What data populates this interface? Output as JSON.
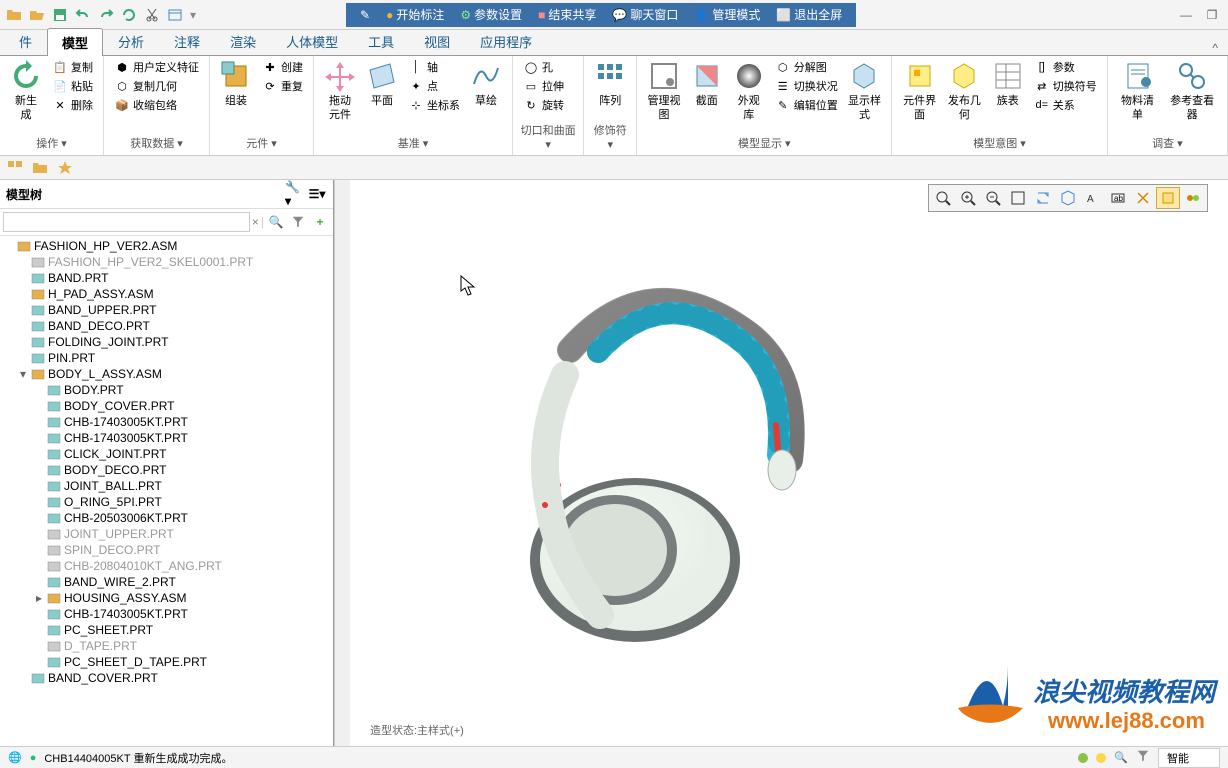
{
  "quickAccess": {
    "icons": [
      "folder",
      "open",
      "save",
      "undo",
      "redo",
      "refresh",
      "cut",
      "window"
    ]
  },
  "blueBar": {
    "items": [
      {
        "icon": "pencil",
        "label": "开始标注",
        "color": "#f0b030"
      },
      {
        "icon": "gear",
        "label": "参数设置",
        "color": "#6fc"
      },
      {
        "icon": "share",
        "label": "结束共享",
        "color": "#f88"
      },
      {
        "icon": "chat",
        "label": "聊天窗口",
        "color": "#cce"
      },
      {
        "icon": "user",
        "label": "管理模式",
        "color": "#fca"
      },
      {
        "icon": "exit",
        "label": "退出全屏",
        "color": "#ddd"
      }
    ]
  },
  "tabs": {
    "items": [
      "件",
      "模型",
      "分析",
      "注释",
      "渲染",
      "人体模型",
      "工具",
      "视图",
      "应用程序"
    ],
    "active": 1,
    "help": "^"
  },
  "ribbon": {
    "groups": [
      {
        "label": "操作",
        "items": [
          {
            "type": "col",
            "items": [
              {
                "label": "新生成",
                "big": true
              }
            ]
          },
          {
            "type": "col",
            "items": [
              {
                "label": "复制",
                "sm": true
              },
              {
                "label": "粘贴",
                "sm": true
              },
              {
                "label": "删除",
                "sm": true
              }
            ]
          }
        ]
      },
      {
        "label": "获取数据",
        "items": [
          {
            "type": "col",
            "items": [
              {
                "label": "用户定义特征",
                "sm": true
              },
              {
                "label": "复制几何",
                "sm": true
              },
              {
                "label": "收缩包络",
                "sm": true
              }
            ]
          }
        ]
      },
      {
        "label": "元件",
        "items": [
          {
            "type": "col",
            "items": [
              {
                "label": "组装",
                "big": true
              }
            ]
          },
          {
            "type": "col",
            "items": [
              {
                "label": "创建",
                "sm": true
              },
              {
                "label": "重复",
                "sm": true
              }
            ]
          }
        ]
      },
      {
        "label": "基准",
        "items": [
          {
            "type": "col",
            "items": [
              {
                "label": "拖动元件",
                "big": true
              }
            ]
          },
          {
            "type": "col",
            "items": [
              {
                "label": "平面",
                "big": true
              }
            ]
          },
          {
            "type": "col",
            "items": [
              {
                "label": "轴",
                "sm": true
              },
              {
                "label": "点",
                "sm": true
              },
              {
                "label": "坐标系",
                "sm": true
              }
            ]
          },
          {
            "type": "col",
            "items": [
              {
                "label": "草绘",
                "big": true
              }
            ]
          }
        ]
      },
      {
        "label": "切口和曲面",
        "items": [
          {
            "type": "col",
            "items": [
              {
                "label": "孔",
                "sm": true
              },
              {
                "label": "拉伸",
                "sm": true
              },
              {
                "label": "旋转",
                "sm": true
              }
            ]
          }
        ]
      },
      {
        "label": "修饰符",
        "items": [
          {
            "type": "col",
            "items": [
              {
                "label": "阵列",
                "big": true
              }
            ]
          }
        ]
      },
      {
        "label": "模型显示",
        "items": [
          {
            "type": "col",
            "items": [
              {
                "label": "管理视图",
                "big": true
              }
            ]
          },
          {
            "type": "col",
            "items": [
              {
                "label": "截面",
                "big": true
              }
            ]
          },
          {
            "type": "col",
            "items": [
              {
                "label": "外观库",
                "big": true
              }
            ]
          },
          {
            "type": "col",
            "items": [
              {
                "label": "分解图",
                "sm": true
              },
              {
                "label": "切换状况",
                "sm": true
              },
              {
                "label": "编辑位置",
                "sm": true
              }
            ]
          },
          {
            "type": "col",
            "items": [
              {
                "label": "显示样式",
                "big": true
              }
            ]
          }
        ]
      },
      {
        "label": "模型意图",
        "items": [
          {
            "type": "col",
            "items": [
              {
                "label": "元件界面",
                "big": true
              }
            ]
          },
          {
            "type": "col",
            "items": [
              {
                "label": "发布几何",
                "big": true
              }
            ]
          },
          {
            "type": "col",
            "items": [
              {
                "label": "族表",
                "big": true
              }
            ]
          },
          {
            "type": "col",
            "items": [
              {
                "label": "参数",
                "sm": true
              },
              {
                "label": "切换符号",
                "sm": true
              },
              {
                "label": "关系",
                "sm": true
              }
            ]
          }
        ]
      },
      {
        "label": "调查",
        "items": [
          {
            "type": "col",
            "items": [
              {
                "label": "物料清单",
                "big": true
              }
            ]
          },
          {
            "type": "col",
            "items": [
              {
                "label": "参考查看器",
                "big": true
              }
            ]
          }
        ]
      }
    ]
  },
  "sidebar": {
    "title": "模型树",
    "searchClear": "×",
    "tree": [
      {
        "label": "FASHION_HP_VER2.ASM",
        "indent": 0,
        "ico": "asm"
      },
      {
        "label": "FASHION_HP_VER2_SKEL0001.PRT",
        "indent": 1,
        "ico": "prt",
        "dim": true
      },
      {
        "label": "BAND.PRT",
        "indent": 1,
        "ico": "prt"
      },
      {
        "label": "H_PAD_ASSY.ASM",
        "indent": 1,
        "ico": "asm"
      },
      {
        "label": "BAND_UPPER.PRT",
        "indent": 1,
        "ico": "prt"
      },
      {
        "label": "BAND_DECO.PRT",
        "indent": 1,
        "ico": "prt"
      },
      {
        "label": "FOLDING_JOINT.PRT",
        "indent": 1,
        "ico": "prt"
      },
      {
        "label": "PIN.PRT",
        "indent": 1,
        "ico": "prt"
      },
      {
        "label": "BODY_L_ASSY.ASM",
        "indent": 1,
        "ico": "asm",
        "exp": "▾"
      },
      {
        "label": "BODY.PRT",
        "indent": 2,
        "ico": "prt"
      },
      {
        "label": "BODY_COVER.PRT",
        "indent": 2,
        "ico": "prt"
      },
      {
        "label": "CHB-17403005KT.PRT",
        "indent": 2,
        "ico": "prt"
      },
      {
        "label": "CHB-17403005KT.PRT",
        "indent": 2,
        "ico": "prt"
      },
      {
        "label": "CLICK_JOINT.PRT",
        "indent": 2,
        "ico": "prt"
      },
      {
        "label": "BODY_DECO.PRT",
        "indent": 2,
        "ico": "prt"
      },
      {
        "label": "JOINT_BALL.PRT",
        "indent": 2,
        "ico": "prt"
      },
      {
        "label": "O_RING_5PI.PRT",
        "indent": 2,
        "ico": "prt"
      },
      {
        "label": "CHB-20503006KT.PRT",
        "indent": 2,
        "ico": "prt"
      },
      {
        "label": "JOINT_UPPER.PRT",
        "indent": 2,
        "ico": "prt",
        "dim": true
      },
      {
        "label": "SPIN_DECO.PRT",
        "indent": 2,
        "ico": "prt",
        "dim": true
      },
      {
        "label": "CHB-20804010KT_ANG.PRT",
        "indent": 2,
        "ico": "prt",
        "dim": true
      },
      {
        "label": "BAND_WIRE_2.PRT",
        "indent": 2,
        "ico": "prt"
      },
      {
        "label": "HOUSING_ASSY.ASM",
        "indent": 2,
        "ico": "asm",
        "exp": "▸"
      },
      {
        "label": "CHB-17403005KT.PRT",
        "indent": 2,
        "ico": "prt"
      },
      {
        "label": "PC_SHEET.PRT",
        "indent": 2,
        "ico": "prt"
      },
      {
        "label": "D_TAPE.PRT",
        "indent": 2,
        "ico": "prt",
        "dim": true
      },
      {
        "label": "PC_SHEET_D_TAPE.PRT",
        "indent": 2,
        "ico": "prt"
      },
      {
        "label": "BAND_COVER.PRT",
        "indent": 1,
        "ico": "prt"
      }
    ]
  },
  "viewport": {
    "statusText": "造型状态:主样式(+)",
    "viewTools": [
      "zoom-fit",
      "zoom-in",
      "zoom-out",
      "refit",
      "spin",
      "saved",
      "layers",
      "annot",
      "wireframe",
      "shading",
      "shading2"
    ],
    "watermark": {
      "brand": "浪尖视频教程网",
      "url": "www.lej88.com",
      "brandColor": "#1b5faa",
      "urlColor": "#e87817"
    }
  },
  "headphones": {
    "bandOuter": "#7a7a7a",
    "bandInner": "#2db5d8",
    "bandEdge": "#555",
    "accent": "#e53935",
    "cupBody": "#e8efe8",
    "cupRim": "#6a7070",
    "cupPad": "#d8e0d8"
  },
  "statusbar": {
    "msg": "CHB14404005KT 重新生成成功完成。",
    "dots": [
      "#8bc34a",
      "#ffd54f"
    ],
    "smart": "智能"
  }
}
